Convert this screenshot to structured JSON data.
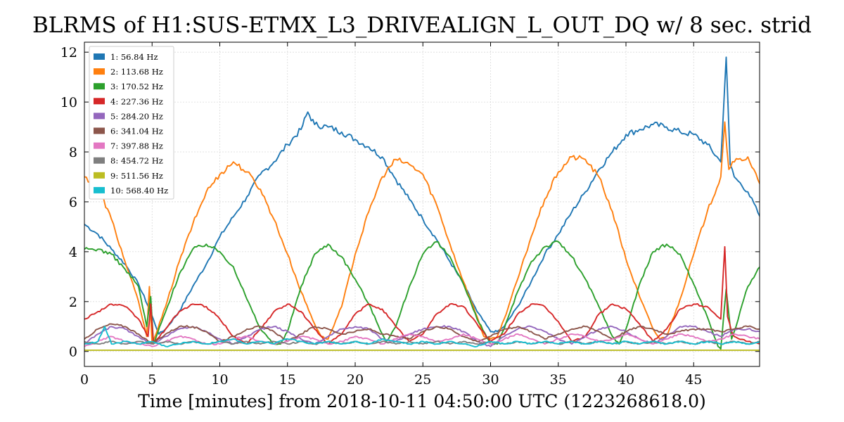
{
  "chart_data": {
    "type": "line",
    "title": "BLRMS of H1:SUS-ETMX_L3_DRIVEALIGN_L_OUT_DQ w/ 8 sec. strid",
    "xlabel": "Time [minutes] from 2018-10-11 04:50:00 UTC (1223268618.0)",
    "ylabel": "",
    "xlim": [
      0,
      49.87
    ],
    "ylim": [
      -0.6,
      12.4
    ],
    "xticks": [
      0,
      5,
      10,
      15,
      20,
      25,
      30,
      35,
      40,
      45
    ],
    "yticks": [
      0,
      2,
      4,
      6,
      8,
      10,
      12
    ],
    "grid": true,
    "legend_position": "top-left",
    "series": [
      {
        "name": "1:  56.84 Hz",
        "color": "#1f77b4",
        "x": [
          0,
          1,
          2,
          3,
          4,
          4.8,
          5.5,
          6,
          7,
          8,
          9,
          10,
          11,
          12,
          13,
          14,
          15,
          16,
          16.5,
          17,
          18,
          19,
          20,
          21,
          22,
          23,
          24,
          25,
          26,
          27,
          28,
          29,
          30,
          30.5,
          31,
          32,
          33,
          34,
          35,
          36,
          37,
          38,
          39,
          40,
          41,
          42,
          43,
          44,
          45,
          46,
          47,
          47.4,
          47.7,
          48,
          49,
          49.9
        ],
        "y": [
          5.1,
          4.7,
          4.1,
          3.5,
          2.7,
          1.7,
          0.7,
          0.9,
          1.6,
          2.6,
          3.5,
          4.6,
          5.4,
          6.2,
          7.1,
          7.6,
          8.3,
          8.9,
          9.6,
          9.1,
          9.0,
          8.8,
          8.5,
          8.2,
          7.8,
          6.9,
          6.1,
          5.3,
          4.5,
          3.6,
          2.7,
          1.6,
          0.8,
          0.8,
          1.0,
          1.8,
          2.8,
          3.9,
          4.7,
          5.6,
          6.4,
          7.3,
          8.0,
          8.7,
          8.9,
          9.1,
          9.0,
          8.8,
          8.7,
          8.3,
          7.6,
          11.8,
          7.5,
          7.0,
          6.4,
          5.4
        ]
      },
      {
        "name": "2:  113.68 Hz",
        "color": "#ff7f0e",
        "x": [
          0,
          1,
          2,
          3,
          4,
          4.6,
          4.8,
          5,
          6,
          7,
          8,
          9,
          10,
          11,
          12,
          13,
          14,
          15,
          16,
          17,
          17.5,
          18,
          19,
          20,
          21,
          22,
          23,
          24,
          25,
          26,
          27,
          28,
          29,
          29.5,
          30,
          30.5,
          31,
          32,
          33,
          34,
          35,
          36,
          37,
          38,
          39,
          40,
          41,
          42,
          42.5,
          43,
          44,
          45,
          46,
          47,
          47.3,
          47.6,
          48,
          49,
          49.9
        ],
        "y": [
          7.0,
          6.6,
          5.3,
          3.6,
          2.0,
          0.6,
          2.6,
          0.3,
          1.8,
          3.6,
          5.1,
          6.4,
          7.1,
          7.6,
          7.2,
          6.5,
          5.3,
          3.9,
          2.4,
          1.1,
          0.6,
          0.5,
          1.8,
          3.9,
          5.6,
          7.0,
          7.7,
          7.5,
          7.1,
          5.9,
          4.3,
          2.8,
          1.4,
          0.6,
          0.5,
          0.6,
          1.3,
          2.9,
          4.6,
          6.1,
          7.2,
          7.8,
          7.7,
          7.0,
          5.6,
          3.7,
          2.2,
          0.9,
          0.5,
          0.6,
          2.1,
          3.9,
          5.6,
          7.0,
          9.2,
          7.3,
          7.6,
          7.8,
          6.7
        ]
      },
      {
        "name": "3:  170.52 Hz",
        "color": "#2ca02c",
        "x": [
          0,
          1,
          2,
          3,
          4,
          4.6,
          4.9,
          5.1,
          6,
          7,
          8,
          9,
          10,
          11,
          12,
          13,
          14,
          14.5,
          15,
          16,
          17,
          18,
          19,
          20,
          21,
          22,
          22.3,
          23,
          24,
          25,
          26,
          27,
          28,
          29,
          30,
          30.5,
          31,
          32,
          33,
          34,
          35,
          36,
          37,
          38,
          39,
          39.5,
          40,
          41,
          42,
          43,
          44,
          45,
          46,
          46.8,
          47,
          47.4,
          47.8,
          48,
          49,
          49.9
        ],
        "y": [
          4.1,
          4.1,
          3.9,
          3.3,
          2.6,
          1.0,
          2.2,
          0.3,
          1.6,
          3.1,
          4.1,
          4.3,
          4.0,
          3.4,
          2.1,
          0.9,
          0.3,
          0.3,
          0.8,
          2.6,
          3.9,
          4.3,
          3.8,
          2.9,
          1.9,
          0.7,
          0.4,
          1.0,
          2.6,
          3.9,
          4.4,
          3.8,
          2.7,
          1.3,
          0.3,
          0.3,
          0.9,
          2.4,
          3.6,
          4.2,
          4.4,
          3.8,
          2.9,
          1.8,
          0.6,
          0.3,
          0.9,
          2.7,
          4.0,
          4.3,
          3.9,
          2.7,
          1.4,
          0.2,
          0.1,
          2.5,
          0.5,
          0.8,
          2.6,
          3.4
        ]
      },
      {
        "name": "4:  227.36 Hz",
        "color": "#d62728",
        "x": [
          0,
          1,
          2,
          3,
          4,
          4.7,
          4.9,
          5.1,
          6,
          7,
          8,
          9,
          10,
          11,
          12,
          13,
          14,
          15,
          16,
          17,
          18,
          19,
          20,
          21,
          22,
          23,
          24,
          25,
          26,
          27,
          28,
          29,
          30,
          31,
          32,
          33,
          34,
          35,
          36,
          37,
          38,
          39,
          40,
          41,
          42,
          43,
          44,
          45,
          46,
          47,
          47.3,
          47.5,
          47.8,
          48,
          49,
          49.9
        ],
        "y": [
          1.3,
          1.6,
          1.9,
          1.8,
          1.3,
          0.6,
          1.9,
          0.3,
          0.9,
          1.6,
          1.9,
          1.8,
          1.3,
          0.6,
          0.3,
          0.9,
          1.6,
          1.9,
          1.6,
          0.9,
          0.3,
          0.7,
          1.5,
          1.9,
          1.7,
          1.0,
          0.4,
          0.7,
          1.5,
          1.9,
          1.8,
          1.1,
          0.4,
          0.7,
          1.5,
          1.9,
          1.8,
          1.2,
          0.4,
          0.6,
          1.5,
          1.9,
          1.7,
          1.1,
          0.4,
          0.9,
          1.7,
          1.9,
          1.8,
          1.3,
          4.2,
          1.4,
          0.8,
          0.6,
          0.4,
          0.3
        ]
      },
      {
        "name": "5:  284.20 Hz",
        "color": "#9467bd",
        "x": [
          0,
          1,
          2,
          3,
          4,
          5,
          6,
          7,
          8,
          9,
          10,
          11,
          12,
          13,
          14,
          15,
          16,
          17,
          18,
          19,
          20,
          21,
          22,
          23,
          24,
          25,
          26,
          27,
          28,
          29,
          30,
          31,
          32,
          33,
          34,
          35,
          36,
          37,
          38,
          39,
          40,
          41,
          42,
          43,
          44,
          45,
          46,
          47,
          48,
          49,
          49.9
        ],
        "y": [
          0.3,
          0.7,
          1.0,
          0.9,
          0.6,
          0.3,
          0.6,
          0.9,
          1.0,
          0.8,
          0.5,
          0.3,
          0.6,
          0.9,
          1.0,
          0.8,
          0.5,
          0.3,
          0.6,
          0.9,
          1.0,
          0.9,
          0.5,
          0.4,
          0.7,
          0.9,
          1.0,
          1.0,
          0.8,
          0.4,
          0.2,
          0.6,
          0.9,
          1.0,
          0.8,
          0.5,
          0.3,
          0.6,
          0.9,
          1.0,
          0.8,
          0.5,
          0.3,
          0.6,
          1.0,
          1.0,
          0.8,
          0.6,
          0.9,
          0.9,
          0.8
        ]
      },
      {
        "name": "6:  341.04 Hz",
        "color": "#8c564b",
        "x": [
          0,
          1,
          2,
          3,
          4,
          5,
          6,
          7,
          8,
          9,
          10,
          11,
          12,
          13,
          14,
          15,
          16,
          17,
          18,
          19,
          20,
          21,
          22,
          23,
          24,
          25,
          26,
          27,
          28,
          29,
          30,
          31,
          32,
          33,
          34,
          35,
          36,
          37,
          38,
          39,
          40,
          41,
          42,
          43,
          44,
          45,
          46,
          47,
          48,
          49,
          49.9
        ],
        "y": [
          0.5,
          0.9,
          1.1,
          1.0,
          0.7,
          0.3,
          0.7,
          1.0,
          1.0,
          0.8,
          0.4,
          0.6,
          0.9,
          1.0,
          0.8,
          0.4,
          0.7,
          1.0,
          0.9,
          0.7,
          0.8,
          0.9,
          0.7,
          0.6,
          0.5,
          0.8,
          1.0,
          0.9,
          0.6,
          0.4,
          0.6,
          0.9,
          1.0,
          0.8,
          0.5,
          0.7,
          0.9,
          1.0,
          0.8,
          0.5,
          0.8,
          1.0,
          0.9,
          0.7,
          0.8,
          0.9,
          0.9,
          0.8,
          0.9,
          1.0,
          0.9
        ]
      },
      {
        "name": "7:  397.88 Hz",
        "color": "#e377c2",
        "x": [
          0,
          1,
          2,
          3,
          4,
          5,
          6,
          7,
          8,
          9,
          10,
          11,
          12,
          13,
          14,
          15,
          16,
          17,
          18,
          19,
          20,
          21,
          22,
          23,
          24,
          25,
          26,
          27,
          28,
          29,
          30,
          31,
          32,
          33,
          34,
          35,
          36,
          37,
          38,
          39,
          40,
          41,
          42,
          43,
          44,
          45,
          46,
          47,
          48,
          49,
          49.9
        ],
        "y": [
          0.2,
          0.4,
          0.6,
          0.4,
          0.3,
          0.2,
          0.4,
          0.6,
          0.5,
          0.3,
          0.3,
          0.5,
          0.6,
          0.4,
          0.3,
          0.4,
          0.6,
          0.5,
          0.3,
          0.4,
          0.6,
          0.5,
          0.3,
          0.5,
          0.7,
          0.6,
          0.4,
          0.5,
          0.7,
          0.5,
          0.3,
          0.5,
          0.7,
          0.5,
          0.3,
          0.5,
          0.7,
          0.6,
          0.4,
          0.5,
          0.7,
          0.5,
          0.3,
          0.5,
          0.7,
          0.6,
          0.4,
          0.5,
          0.7,
          0.6,
          0.5
        ]
      },
      {
        "name": "8:  454.72 Hz",
        "color": "#7f7f7f",
        "x": [
          0,
          1,
          2,
          3,
          4,
          5,
          6,
          7,
          8,
          9,
          10,
          11,
          12,
          13,
          14,
          15,
          16,
          17,
          18,
          19,
          20,
          21,
          22,
          23,
          24,
          25,
          26,
          27,
          28,
          29,
          30,
          31,
          32,
          33,
          34,
          35,
          36,
          37,
          38,
          39,
          40,
          41,
          42,
          43,
          44,
          45,
          46,
          47,
          48,
          49,
          49.9
        ],
        "y": [
          0.4,
          0.3,
          0.4,
          0.3,
          0.4,
          0.3,
          0.4,
          0.3,
          0.4,
          0.3,
          0.4,
          0.3,
          0.4,
          0.3,
          0.4,
          0.3,
          0.4,
          0.3,
          0.4,
          0.3,
          0.4,
          0.3,
          0.4,
          0.3,
          0.4,
          0.3,
          0.4,
          0.3,
          0.4,
          0.3,
          0.4,
          0.3,
          0.4,
          0.3,
          0.4,
          0.3,
          0.4,
          0.3,
          0.4,
          0.3,
          0.4,
          0.3,
          0.4,
          0.3,
          0.4,
          0.3,
          0.4,
          0.3,
          0.4,
          0.3,
          0.4
        ]
      },
      {
        "name": "9:  511.56 Hz",
        "color": "#bcbd22",
        "x": [
          0,
          49.9
        ],
        "y": [
          0.05,
          0.05
        ]
      },
      {
        "name": "10:  568.40 Hz",
        "color": "#17becf",
        "x": [
          0,
          1,
          1.5,
          2,
          3,
          4,
          5,
          6,
          7,
          8,
          9,
          10,
          11,
          12,
          13,
          14,
          15,
          16,
          17,
          18,
          19,
          20,
          21,
          22,
          23,
          24,
          25,
          26,
          27,
          28,
          29,
          30,
          31,
          32,
          33,
          34,
          35,
          36,
          37,
          38,
          39,
          40,
          41,
          42,
          43,
          44,
          45,
          46,
          47,
          48,
          49,
          49.9
        ],
        "y": [
          0.3,
          0.4,
          1.0,
          0.3,
          0.4,
          0.3,
          0.4,
          0.2,
          0.3,
          0.4,
          0.3,
          0.4,
          0.5,
          0.3,
          0.4,
          0.3,
          0.5,
          0.4,
          0.3,
          0.4,
          0.3,
          0.4,
          0.3,
          0.5,
          0.4,
          0.3,
          0.4,
          0.3,
          0.4,
          0.3,
          0.2,
          0.4,
          0.3,
          0.4,
          0.3,
          0.4,
          0.3,
          0.4,
          0.3,
          0.4,
          0.3,
          0.4,
          0.3,
          0.4,
          0.3,
          0.4,
          0.3,
          0.4,
          0.3,
          0.4,
          0.3,
          0.4
        ]
      }
    ]
  }
}
